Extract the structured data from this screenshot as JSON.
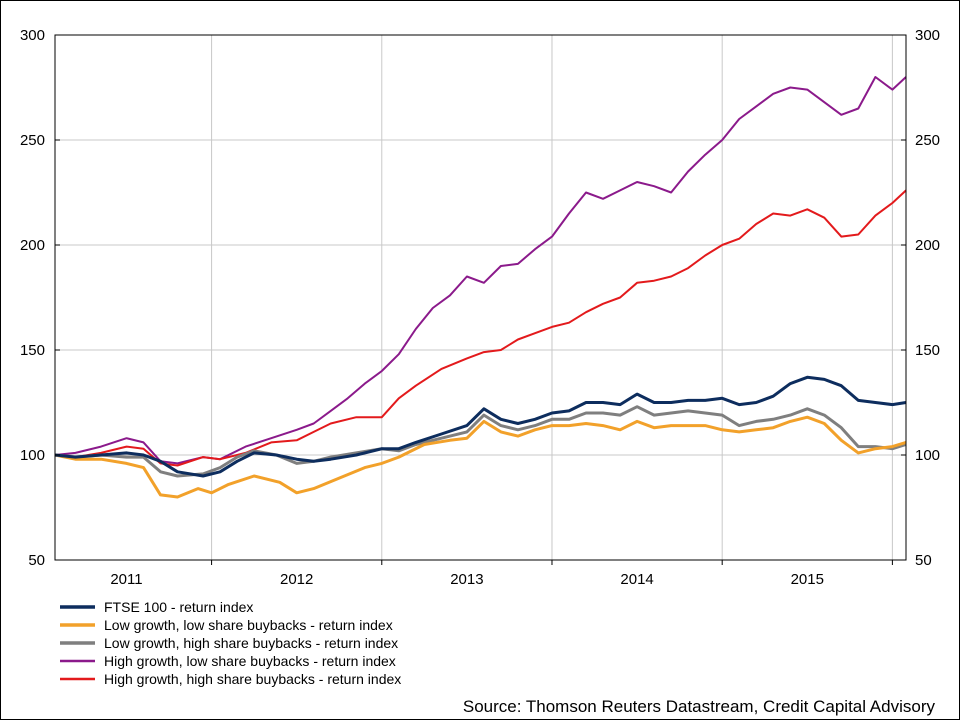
{
  "chart_data": {
    "type": "line",
    "title": "",
    "xlabel": "",
    "ylabel": "",
    "ylim": [
      50,
      300
    ],
    "yticks": [
      "300",
      "250",
      "200",
      "150",
      "100",
      "50"
    ],
    "xticks": [
      "2011",
      "2012",
      "2013",
      "2014",
      "2015"
    ],
    "xrange": [
      2010.58,
      2015.58
    ],
    "grid": true,
    "legend_position": "bottom-left",
    "source": "Source: Thomson Reuters Datastream, Credit Capital Advisory",
    "series": [
      {
        "name": "FTSE 100 - return index",
        "color": "#0d2d5e",
        "width": 3,
        "points": [
          [
            2010.58,
            100
          ],
          [
            2010.7,
            99
          ],
          [
            2010.85,
            100
          ],
          [
            2011.0,
            101
          ],
          [
            2011.1,
            100
          ],
          [
            2011.2,
            97
          ],
          [
            2011.3,
            92
          ],
          [
            2011.45,
            90
          ],
          [
            2011.55,
            92
          ],
          [
            2011.65,
            97
          ],
          [
            2011.75,
            101
          ],
          [
            2011.88,
            100
          ],
          [
            2012.0,
            98
          ],
          [
            2012.1,
            97
          ],
          [
            2012.2,
            98
          ],
          [
            2012.35,
            100
          ],
          [
            2012.5,
            103
          ],
          [
            2012.6,
            103
          ],
          [
            2012.7,
            106
          ],
          [
            2012.85,
            110
          ],
          [
            2013.0,
            114
          ],
          [
            2013.1,
            122
          ],
          [
            2013.2,
            117
          ],
          [
            2013.3,
            115
          ],
          [
            2013.4,
            117
          ],
          [
            2013.5,
            120
          ],
          [
            2013.6,
            121
          ],
          [
            2013.7,
            125
          ],
          [
            2013.8,
            125
          ],
          [
            2013.9,
            124
          ],
          [
            2014.0,
            129
          ],
          [
            2014.1,
            125
          ],
          [
            2014.2,
            125
          ],
          [
            2014.3,
            126
          ],
          [
            2014.4,
            126
          ],
          [
            2014.5,
            127
          ],
          [
            2014.6,
            124
          ],
          [
            2014.7,
            125
          ],
          [
            2014.8,
            128
          ],
          [
            2014.9,
            134
          ],
          [
            2015.0,
            137
          ],
          [
            2015.1,
            136
          ],
          [
            2015.2,
            133
          ],
          [
            2015.3,
            126
          ],
          [
            2015.4,
            125
          ],
          [
            2015.5,
            124
          ],
          [
            2015.58,
            125
          ]
        ]
      },
      {
        "name": "Low growth, low share buybacks - return index",
        "color": "#f2a12a",
        "width": 3,
        "points": [
          [
            2010.58,
            100
          ],
          [
            2010.7,
            98
          ],
          [
            2010.85,
            98
          ],
          [
            2011.0,
            96
          ],
          [
            2011.1,
            94
          ],
          [
            2011.2,
            81
          ],
          [
            2011.3,
            80
          ],
          [
            2011.42,
            84
          ],
          [
            2011.5,
            82
          ],
          [
            2011.6,
            86
          ],
          [
            2011.75,
            90
          ],
          [
            2011.9,
            87
          ],
          [
            2012.0,
            82
          ],
          [
            2012.1,
            84
          ],
          [
            2012.25,
            89
          ],
          [
            2012.4,
            94
          ],
          [
            2012.5,
            96
          ],
          [
            2012.6,
            99
          ],
          [
            2012.75,
            105
          ],
          [
            2012.9,
            107
          ],
          [
            2013.0,
            108
          ],
          [
            2013.1,
            116
          ],
          [
            2013.2,
            111
          ],
          [
            2013.3,
            109
          ],
          [
            2013.4,
            112
          ],
          [
            2013.5,
            114
          ],
          [
            2013.6,
            114
          ],
          [
            2013.7,
            115
          ],
          [
            2013.8,
            114
          ],
          [
            2013.9,
            112
          ],
          [
            2014.0,
            116
          ],
          [
            2014.1,
            113
          ],
          [
            2014.2,
            114
          ],
          [
            2014.3,
            114
          ],
          [
            2014.4,
            114
          ],
          [
            2014.5,
            112
          ],
          [
            2014.6,
            111
          ],
          [
            2014.7,
            112
          ],
          [
            2014.8,
            113
          ],
          [
            2014.9,
            116
          ],
          [
            2015.0,
            118
          ],
          [
            2015.1,
            115
          ],
          [
            2015.2,
            107
          ],
          [
            2015.3,
            101
          ],
          [
            2015.4,
            103
          ],
          [
            2015.5,
            104
          ],
          [
            2015.58,
            106
          ]
        ]
      },
      {
        "name": "Low growth, high share buybacks - return index",
        "color": "#7f7f7f",
        "width": 3,
        "points": [
          [
            2010.58,
            100
          ],
          [
            2010.7,
            99
          ],
          [
            2010.85,
            100
          ],
          [
            2011.0,
            99
          ],
          [
            2011.1,
            99
          ],
          [
            2011.2,
            92
          ],
          [
            2011.3,
            90
          ],
          [
            2011.45,
            91
          ],
          [
            2011.55,
            94
          ],
          [
            2011.65,
            99
          ],
          [
            2011.75,
            102
          ],
          [
            2011.88,
            100
          ],
          [
            2012.0,
            96
          ],
          [
            2012.1,
            97
          ],
          [
            2012.2,
            99
          ],
          [
            2012.35,
            101
          ],
          [
            2012.5,
            103
          ],
          [
            2012.6,
            102
          ],
          [
            2012.7,
            105
          ],
          [
            2012.85,
            108
          ],
          [
            2013.0,
            111
          ],
          [
            2013.1,
            119
          ],
          [
            2013.2,
            114
          ],
          [
            2013.3,
            112
          ],
          [
            2013.4,
            114
          ],
          [
            2013.5,
            117
          ],
          [
            2013.6,
            117
          ],
          [
            2013.7,
            120
          ],
          [
            2013.8,
            120
          ],
          [
            2013.9,
            119
          ],
          [
            2014.0,
            123
          ],
          [
            2014.1,
            119
          ],
          [
            2014.2,
            120
          ],
          [
            2014.3,
            121
          ],
          [
            2014.4,
            120
          ],
          [
            2014.5,
            119
          ],
          [
            2014.6,
            114
          ],
          [
            2014.7,
            116
          ],
          [
            2014.8,
            117
          ],
          [
            2014.9,
            119
          ],
          [
            2015.0,
            122
          ],
          [
            2015.1,
            119
          ],
          [
            2015.2,
            113
          ],
          [
            2015.3,
            104
          ],
          [
            2015.4,
            104
          ],
          [
            2015.5,
            103
          ],
          [
            2015.58,
            105
          ]
        ]
      },
      {
        "name": "High growth, low share buybacks - return index",
        "color": "#8b1a8b",
        "width": 2,
        "points": [
          [
            2010.58,
            100
          ],
          [
            2010.7,
            101
          ],
          [
            2010.85,
            104
          ],
          [
            2011.0,
            108
          ],
          [
            2011.1,
            106
          ],
          [
            2011.2,
            97
          ],
          [
            2011.3,
            96
          ],
          [
            2011.45,
            99
          ],
          [
            2011.55,
            98
          ],
          [
            2011.7,
            104
          ],
          [
            2011.85,
            108
          ],
          [
            2012.0,
            112
          ],
          [
            2012.1,
            115
          ],
          [
            2012.2,
            121
          ],
          [
            2012.3,
            127
          ],
          [
            2012.4,
            134
          ],
          [
            2012.5,
            140
          ],
          [
            2012.6,
            148
          ],
          [
            2012.7,
            160
          ],
          [
            2012.8,
            170
          ],
          [
            2012.9,
            176
          ],
          [
            2013.0,
            185
          ],
          [
            2013.1,
            182
          ],
          [
            2013.2,
            190
          ],
          [
            2013.3,
            191
          ],
          [
            2013.4,
            198
          ],
          [
            2013.5,
            204
          ],
          [
            2013.6,
            215
          ],
          [
            2013.7,
            225
          ],
          [
            2013.8,
            222
          ],
          [
            2013.9,
            226
          ],
          [
            2014.0,
            230
          ],
          [
            2014.1,
            228
          ],
          [
            2014.2,
            225
          ],
          [
            2014.3,
            235
          ],
          [
            2014.4,
            243
          ],
          [
            2014.5,
            250
          ],
          [
            2014.6,
            260
          ],
          [
            2014.7,
            266
          ],
          [
            2014.8,
            272
          ],
          [
            2014.9,
            275
          ],
          [
            2015.0,
            274
          ],
          [
            2015.1,
            268
          ],
          [
            2015.2,
            262
          ],
          [
            2015.3,
            265
          ],
          [
            2015.4,
            280
          ],
          [
            2015.5,
            274
          ],
          [
            2015.58,
            280
          ]
        ]
      },
      {
        "name": "High growth, high share buybacks - return index",
        "color": "#e31a1c",
        "width": 2,
        "points": [
          [
            2010.58,
            100
          ],
          [
            2010.7,
            99
          ],
          [
            2010.85,
            101
          ],
          [
            2011.0,
            104
          ],
          [
            2011.1,
            103
          ],
          [
            2011.2,
            96
          ],
          [
            2011.3,
            95
          ],
          [
            2011.45,
            99
          ],
          [
            2011.55,
            98
          ],
          [
            2011.7,
            101
          ],
          [
            2011.85,
            106
          ],
          [
            2012.0,
            107
          ],
          [
            2012.1,
            111
          ],
          [
            2012.2,
            115
          ],
          [
            2012.35,
            118
          ],
          [
            2012.5,
            118
          ],
          [
            2012.6,
            127
          ],
          [
            2012.7,
            133
          ],
          [
            2012.85,
            141
          ],
          [
            2013.0,
            146
          ],
          [
            2013.1,
            149
          ],
          [
            2013.2,
            150
          ],
          [
            2013.3,
            155
          ],
          [
            2013.4,
            158
          ],
          [
            2013.5,
            161
          ],
          [
            2013.6,
            163
          ],
          [
            2013.7,
            168
          ],
          [
            2013.8,
            172
          ],
          [
            2013.9,
            175
          ],
          [
            2014.0,
            182
          ],
          [
            2014.1,
            183
          ],
          [
            2014.2,
            185
          ],
          [
            2014.3,
            189
          ],
          [
            2014.4,
            195
          ],
          [
            2014.5,
            200
          ],
          [
            2014.6,
            203
          ],
          [
            2014.7,
            210
          ],
          [
            2014.8,
            215
          ],
          [
            2014.9,
            214
          ],
          [
            2015.0,
            217
          ],
          [
            2015.1,
            213
          ],
          [
            2015.2,
            204
          ],
          [
            2015.3,
            205
          ],
          [
            2015.4,
            214
          ],
          [
            2015.5,
            220
          ],
          [
            2015.58,
            226
          ]
        ]
      }
    ]
  }
}
